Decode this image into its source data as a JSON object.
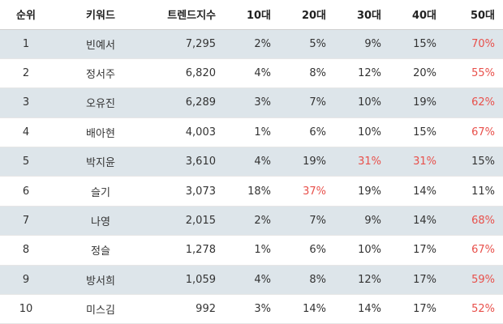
{
  "table": {
    "headers": {
      "rank": "순위",
      "keyword": "키워드",
      "trend": "트렌드지수",
      "age10": "10대",
      "age20": "20대",
      "age30": "30대",
      "age40": "40대",
      "age50": "50대"
    },
    "highlight_color": "#e8504b",
    "rows": [
      {
        "rank": "1",
        "keyword": "빈예서",
        "trend": "7,295",
        "age10": "2%",
        "age20": "5%",
        "age30": "9%",
        "age40": "15%",
        "age50": "70%",
        "highlight": [
          "age50"
        ]
      },
      {
        "rank": "2",
        "keyword": "정서주",
        "trend": "6,820",
        "age10": "4%",
        "age20": "8%",
        "age30": "12%",
        "age40": "20%",
        "age50": "55%",
        "highlight": [
          "age50"
        ]
      },
      {
        "rank": "3",
        "keyword": "오유진",
        "trend": "6,289",
        "age10": "3%",
        "age20": "7%",
        "age30": "10%",
        "age40": "19%",
        "age50": "62%",
        "highlight": [
          "age50"
        ]
      },
      {
        "rank": "4",
        "keyword": "배아현",
        "trend": "4,003",
        "age10": "1%",
        "age20": "6%",
        "age30": "10%",
        "age40": "15%",
        "age50": "67%",
        "highlight": [
          "age50"
        ]
      },
      {
        "rank": "5",
        "keyword": "박지윤",
        "trend": "3,610",
        "age10": "4%",
        "age20": "19%",
        "age30": "31%",
        "age40": "31%",
        "age50": "15%",
        "highlight": [
          "age30",
          "age40"
        ]
      },
      {
        "rank": "6",
        "keyword": "슬기",
        "trend": "3,073",
        "age10": "18%",
        "age20": "37%",
        "age30": "19%",
        "age40": "14%",
        "age50": "11%",
        "highlight": [
          "age20"
        ]
      },
      {
        "rank": "7",
        "keyword": "나영",
        "trend": "2,015",
        "age10": "2%",
        "age20": "7%",
        "age30": "9%",
        "age40": "14%",
        "age50": "68%",
        "highlight": [
          "age50"
        ]
      },
      {
        "rank": "8",
        "keyword": "정슬",
        "trend": "1,278",
        "age10": "1%",
        "age20": "6%",
        "age30": "10%",
        "age40": "17%",
        "age50": "67%",
        "highlight": [
          "age50"
        ]
      },
      {
        "rank": "9",
        "keyword": "방서희",
        "trend": "1,059",
        "age10": "4%",
        "age20": "8%",
        "age30": "12%",
        "age40": "17%",
        "age50": "59%",
        "highlight": [
          "age50"
        ]
      },
      {
        "rank": "10",
        "keyword": "미스김",
        "trend": "992",
        "age10": "3%",
        "age20": "14%",
        "age30": "14%",
        "age40": "17%",
        "age50": "52%",
        "highlight": [
          "age50"
        ]
      }
    ]
  }
}
